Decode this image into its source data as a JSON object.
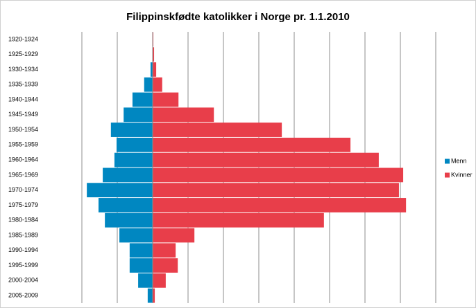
{
  "chart_data": {
    "type": "pyramid",
    "title": "Filippinskfødte katolikker i Norge pr. 1.1.2010",
    "categories": [
      "1920-1924",
      "1925-1929",
      "1930-1934",
      "1935-1939",
      "1940-1944",
      "1945-1949",
      "1950-1954",
      "1955-1959",
      "1960-1964",
      "1965-1969",
      "1970-1974",
      "1975-1979",
      "1980-1984",
      "1985-1989",
      "1990-1994",
      "1995-1999",
      "2000-2004",
      "2005-2009"
    ],
    "series": [
      {
        "name": "Menn",
        "color": "#0087c1",
        "values": [
          0,
          0,
          6,
          24,
          57,
          82,
          118,
          102,
          108,
          141,
          186,
          153,
          135,
          94,
          65,
          65,
          41,
          14
        ]
      },
      {
        "name": "Kvinner",
        "color": "#e83e4a",
        "values": [
          2,
          4,
          10,
          27,
          73,
          173,
          365,
          559,
          639,
          708,
          696,
          716,
          484,
          118,
          65,
          71,
          37,
          6
        ]
      }
    ],
    "xlim": [
      -300,
      800
    ],
    "xticks": [
      -200,
      -100,
      0,
      100,
      200,
      300,
      400,
      500,
      600,
      700,
      800
    ],
    "grid": true,
    "legend": "right"
  }
}
